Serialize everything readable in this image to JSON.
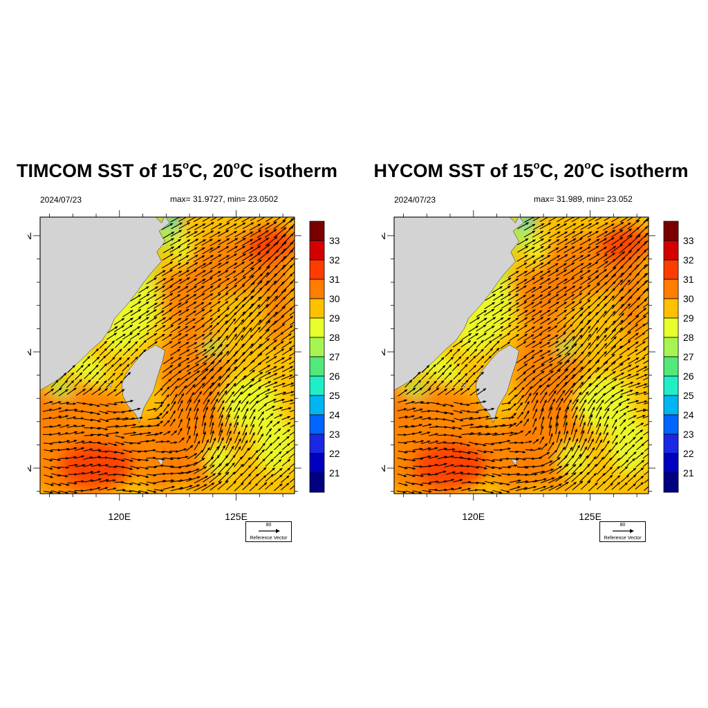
{
  "colorbar": {
    "levels": [
      "33",
      "32",
      "31",
      "30",
      "29",
      "28",
      "27",
      "26",
      "25",
      "24",
      "23",
      "22",
      "21"
    ],
    "colors": [
      "#7a0000",
      "#d40000",
      "#ff3c00",
      "#ff7e00",
      "#ffc000",
      "#e8ff2e",
      "#a6f552",
      "#52e87a",
      "#20eec8",
      "#00b6f2",
      "#0066ff",
      "#1a28e6",
      "#0000c0",
      "#000080"
    ]
  },
  "axes": {
    "lat_labels": [
      "30N",
      "25N",
      "20N"
    ],
    "lon_labels": [
      "120E",
      "125E"
    ],
    "lat_range": [
      18.9,
      30.8
    ],
    "lon_range": [
      116.6,
      127.5
    ]
  },
  "panels": [
    {
      "title_prefix": "TIMCOM SST of 15",
      "title_deg": "o",
      "title_mid": "C, 20",
      "title_deg2": "o",
      "title_suffix": "C isotherm",
      "date": "2024/07/23",
      "stats": "max= 31.9727, min= 23.0502",
      "ref_magnitude": "80",
      "ref_label": "Reference Vector"
    },
    {
      "title_prefix": "HYCOM SST of 15",
      "title_deg": "o",
      "title_mid": "C, 20",
      "title_deg2": "o",
      "title_suffix": "C isotherm",
      "date": "2024/07/23",
      "stats": "max= 31.989, min= 23.052",
      "ref_magnitude": "80",
      "ref_label": "Reference Vector"
    }
  ],
  "colors": {
    "land": "#d3d3d3",
    "arrow": "#000000",
    "ocean_base": "#ffc000"
  }
}
